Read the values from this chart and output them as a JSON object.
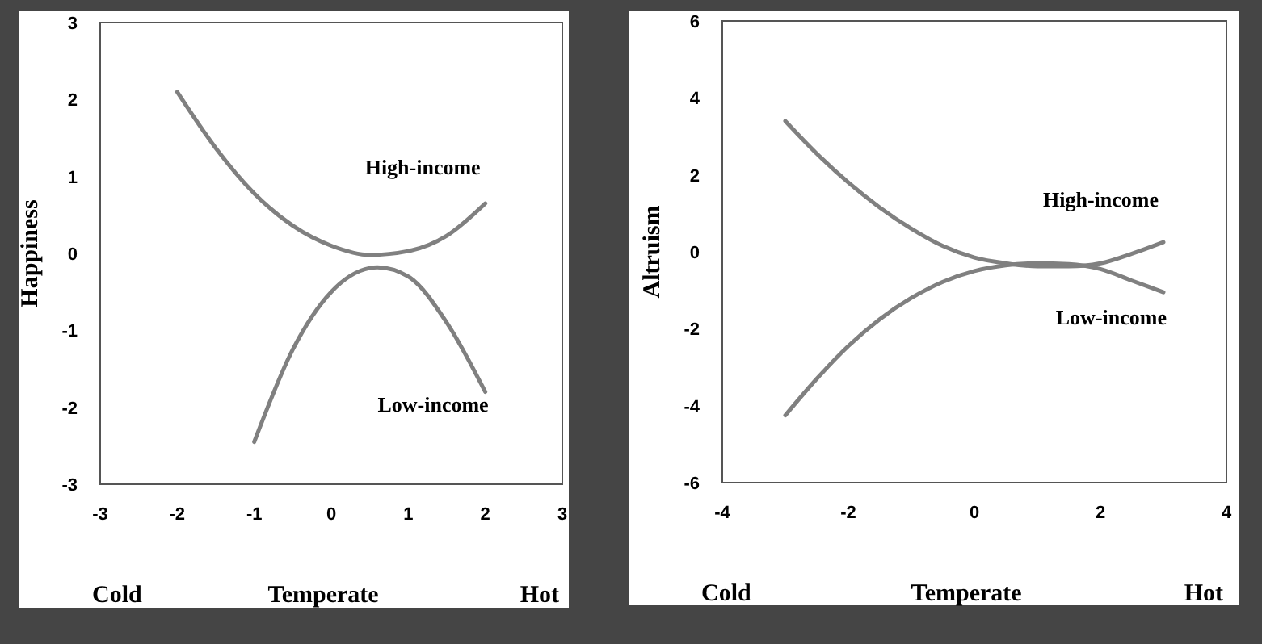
{
  "chart_data": [
    {
      "type": "line",
      "ylabel": "Happiness",
      "xlim": [
        -3,
        3
      ],
      "xticks": [
        -3,
        -2,
        -1,
        0,
        1,
        2,
        3
      ],
      "ylim": [
        -3,
        3
      ],
      "yticks": [
        -3,
        -2,
        -1,
        0,
        1,
        2,
        3
      ],
      "grid": false,
      "legend": false,
      "marker": "none",
      "line_style": "solid",
      "series": [
        {
          "name": "High-income",
          "color": "#808080",
          "x": [
            -2,
            -1.5,
            -1,
            -0.5,
            0,
            0.5,
            1,
            1.5,
            2
          ],
          "values": [
            2.1,
            1.37,
            0.78,
            0.36,
            0.1,
            -0.02,
            0.03,
            0.23,
            0.65
          ]
        },
        {
          "name": "Low-income",
          "color": "#808080",
          "x": [
            -1,
            -0.5,
            0,
            0.5,
            0.6,
            1,
            1.5,
            2
          ],
          "values": [
            -2.45,
            -1.25,
            -0.5,
            -0.19,
            -0.18,
            -0.3,
            -0.9,
            -1.8
          ]
        }
      ],
      "annotations": [
        "Cold",
        "Temperate",
        "Hot"
      ]
    },
    {
      "type": "line",
      "ylabel": "Altruism",
      "xlim": [
        -4,
        4
      ],
      "xticks": [
        -4,
        -2,
        0,
        2,
        4
      ],
      "ylim": [
        -6,
        6
      ],
      "yticks": [
        -6,
        -4,
        -2,
        0,
        2,
        4,
        6
      ],
      "grid": false,
      "legend": false,
      "marker": "none",
      "line_style": "solid",
      "series": [
        {
          "name": "High-income",
          "color": "#808080",
          "x": [
            -3,
            -2.5,
            -2,
            -1.5,
            -1,
            -0.5,
            0,
            0.5,
            1,
            1.5,
            2,
            2.5,
            3
          ],
          "values": [
            3.4,
            2.55,
            1.8,
            1.15,
            0.6,
            0.15,
            -0.15,
            -0.3,
            -0.38,
            -0.38,
            -0.3,
            -0.05,
            0.25
          ]
        },
        {
          "name": "Low-income",
          "color": "#808080",
          "x": [
            -3,
            -2.5,
            -2,
            -1.5,
            -1,
            -0.5,
            0,
            0.5,
            1,
            1.5,
            2,
            2.5,
            3
          ],
          "values": [
            -4.25,
            -3.3,
            -2.45,
            -1.75,
            -1.2,
            -0.78,
            -0.5,
            -0.35,
            -0.3,
            -0.32,
            -0.45,
            -0.75,
            -1.05
          ]
        }
      ],
      "annotations": [
        "Cold",
        "Temperate",
        "Hot"
      ]
    }
  ]
}
